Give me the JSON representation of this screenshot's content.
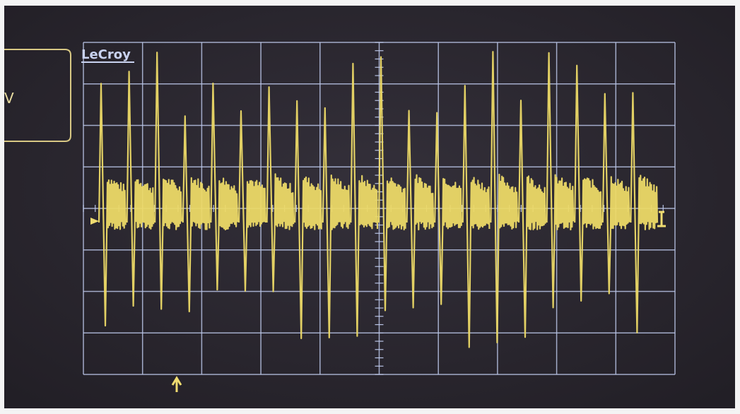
{
  "screen": {
    "brand": "LeCroy",
    "side_label": "V"
  }
}
